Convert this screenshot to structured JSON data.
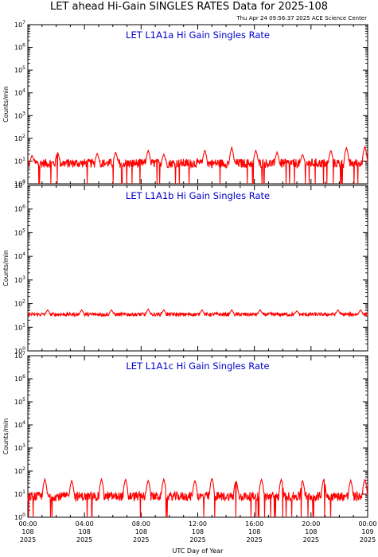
{
  "title": "LET ahead Hi-Gain SINGLES RATES Data for 2025-108",
  "timestamp": "Thu Apr 24 09:56:37 2025 ACE Science Center",
  "xlabel": "UTC Day of Year",
  "ylabel": "Counts/min",
  "colors": {
    "series": "#ff0000",
    "panel_title": "#0000cc",
    "axis": "#000000"
  },
  "chart_data": [
    {
      "type": "line",
      "title": "LET L1A1a Hi Gain Singles Rate",
      "ylabel": "Counts/min",
      "yscale": "log",
      "ylim": [
        1,
        10000000
      ],
      "xlim": [
        0,
        24
      ],
      "x_units": "hours UTC, day 108 2025",
      "series": [
        {
          "baseline": 8,
          "spikes": [
            {
              "x": 0.3,
              "y": 18
            },
            {
              "x": 2.1,
              "y": 25
            },
            {
              "x": 4.9,
              "y": 22
            },
            {
              "x": 6.2,
              "y": 25
            },
            {
              "x": 8.5,
              "y": 30
            },
            {
              "x": 9.6,
              "y": 20
            },
            {
              "x": 12.5,
              "y": 30
            },
            {
              "x": 14.4,
              "y": 40
            },
            {
              "x": 16.1,
              "y": 30
            },
            {
              "x": 17.6,
              "y": 25
            },
            {
              "x": 19.4,
              "y": 20
            },
            {
              "x": 21.4,
              "y": 30
            },
            {
              "x": 22.5,
              "y": 40
            },
            {
              "x": 23.8,
              "y": 45
            }
          ]
        }
      ]
    },
    {
      "type": "line",
      "title": "LET L1A1b Hi Gain Singles Rate",
      "ylabel": "Counts/min",
      "yscale": "log",
      "ylim": [
        1,
        10000000
      ],
      "xlim": [
        0,
        24
      ],
      "x_units": "hours UTC, day 108 2025",
      "series": [
        {
          "baseline": 35,
          "spikes": [
            {
              "x": 1.4,
              "y": 55
            },
            {
              "x": 3.8,
              "y": 55
            },
            {
              "x": 5.9,
              "y": 55
            },
            {
              "x": 8.5,
              "y": 60
            },
            {
              "x": 9.6,
              "y": 55
            },
            {
              "x": 12.3,
              "y": 55
            },
            {
              "x": 14.4,
              "y": 55
            },
            {
              "x": 16.4,
              "y": 55
            },
            {
              "x": 19.0,
              "y": 50
            },
            {
              "x": 21.9,
              "y": 55
            },
            {
              "x": 23.5,
              "y": 55
            }
          ]
        }
      ]
    },
    {
      "type": "line",
      "title": "LET L1A1c Hi Gain Singles Rate",
      "ylabel": "Counts/min",
      "yscale": "log",
      "ylim": [
        1,
        10000000
      ],
      "xlim": [
        0,
        24
      ],
      "x_units": "hours UTC, day 108 2025",
      "series": [
        {
          "baseline": 8,
          "spikes": [
            {
              "x": 1.2,
              "y": 45
            },
            {
              "x": 3.1,
              "y": 40
            },
            {
              "x": 5.2,
              "y": 45
            },
            {
              "x": 6.9,
              "y": 45
            },
            {
              "x": 8.5,
              "y": 40
            },
            {
              "x": 9.6,
              "y": 45
            },
            {
              "x": 11.8,
              "y": 40
            },
            {
              "x": 13.0,
              "y": 50
            },
            {
              "x": 14.7,
              "y": 40
            },
            {
              "x": 16.5,
              "y": 45
            },
            {
              "x": 17.9,
              "y": 45
            },
            {
              "x": 19.4,
              "y": 40
            },
            {
              "x": 20.9,
              "y": 45
            },
            {
              "x": 22.8,
              "y": 40
            },
            {
              "x": 23.8,
              "y": 45
            }
          ]
        }
      ]
    }
  ],
  "x_ticks": [
    {
      "x": 0,
      "time": "00:00",
      "doy": "108",
      "year": "2025"
    },
    {
      "x": 4,
      "time": "04:00",
      "doy": "108",
      "year": "2025"
    },
    {
      "x": 8,
      "time": "08:00",
      "doy": "108",
      "year": "2025"
    },
    {
      "x": 12,
      "time": "12:00",
      "doy": "108",
      "year": "2025"
    },
    {
      "x": 16,
      "time": "16:00",
      "doy": "108",
      "year": "2025"
    },
    {
      "x": 20,
      "time": "20:00",
      "doy": "108",
      "year": "2025"
    },
    {
      "x": 24,
      "time": "00:00",
      "doy": "109",
      "year": "2025"
    }
  ],
  "y_tick_exponents": [
    0,
    1,
    2,
    3,
    4,
    5,
    6,
    7
  ]
}
